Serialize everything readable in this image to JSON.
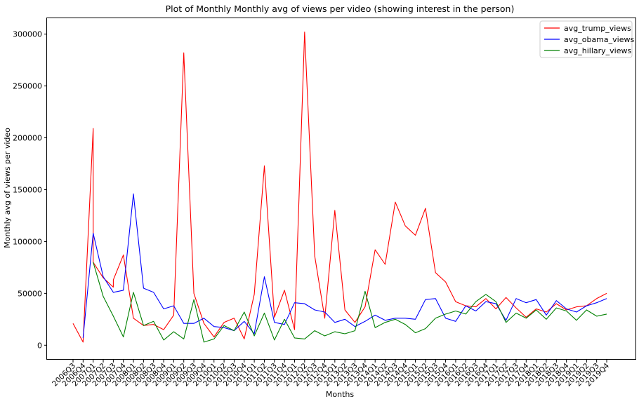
{
  "chart_data": {
    "type": "line",
    "title": "Plot of Monthly Monthly avg of views per video (showing interest in the person)",
    "xlabel": "Months",
    "ylabel": "Monthly avg of views per video",
    "ylim": [
      -14000,
      316000
    ],
    "yticks": [
      0,
      50000,
      100000,
      150000,
      200000,
      250000,
      300000
    ],
    "grid": false,
    "legend_position": "top-right",
    "categories": [
      "2006Q3",
      "2006Q4",
      "2007Q1",
      "2007Q2",
      "2007Q3",
      "2007Q4",
      "2008Q1",
      "2008Q2",
      "2008Q3",
      "2008Q4",
      "2009Q1",
      "2009Q2",
      "2009Q3",
      "2009Q4",
      "2010Q1",
      "2010Q2",
      "2010Q3",
      "2010Q4",
      "2011Q1",
      "2011Q2",
      "2011Q3",
      "2011Q4",
      "2012Q1",
      "2012Q2",
      "2012Q3",
      "2012Q4",
      "2013Q1",
      "2013Q2",
      "2013Q3",
      "2013Q4",
      "2014Q1",
      "2014Q2",
      "2014Q3",
      "2014Q4",
      "2015Q1",
      "2015Q2",
      "2015Q3",
      "2015Q4",
      "2016Q1",
      "2016Q2",
      "2016Q3",
      "2016Q4",
      "2017Q1",
      "2017Q2",
      "2017Q3",
      "2017Q4",
      "2018Q1",
      "2018Q2",
      "2018Q3",
      "2018Q4",
      "2019Q1",
      "2019Q2",
      "2019Q3",
      "2019Q4"
    ],
    "x": [
      "2006Q3",
      "2006Q4",
      "2007Q1",
      "2007Q1",
      "2007Q2",
      "2007Q2",
      "2007Q3",
      "2007Q3",
      "2007Q4",
      "2008Q1",
      "2008Q1",
      "2008Q2",
      "2008Q2",
      "2008Q3",
      "2008Q3",
      "2008Q4",
      "2009Q1",
      "2009Q1",
      "2009Q2",
      "2009Q2",
      "2009Q3",
      "2009Q4",
      "2009Q4",
      "2010Q1",
      "2010Q1",
      "2010Q2",
      "2010Q2",
      "2010Q3",
      "2010Q4",
      "2010Q4",
      "2011Q1",
      "2011Q1",
      "2011Q2",
      "2011Q2",
      "2011Q3",
      "2011Q3",
      "2011Q4",
      "2012Q1",
      "2012Q1",
      "2012Q2",
      "2012Q2",
      "2012Q3",
      "2012Q3",
      "2012Q4",
      "2013Q1",
      "2013Q1",
      "2013Q2",
      "2013Q2",
      "2013Q3",
      "2013Q4",
      "2013Q4",
      "2014Q1",
      "2014Q1",
      "2014Q2",
      "2014Q2",
      "2014Q3",
      "2014Q3",
      "2014Q4",
      "2015Q1",
      "2015Q1",
      "2015Q2",
      "2015Q2",
      "2015Q3",
      "2015Q4",
      "2015Q4",
      "2016Q1",
      "2016Q1",
      "2016Q2",
      "2016Q2",
      "2016Q3",
      "2016Q3",
      "2016Q4",
      "2017Q1",
      "2017Q1",
      "2017Q2",
      "2017Q2",
      "2017Q3",
      "2017Q3",
      "2017Q4",
      "2018Q1",
      "2018Q1",
      "2018Q2",
      "2018Q2",
      "2018Q3",
      "2018Q3",
      "2018Q4",
      "2019Q1",
      "2019Q1",
      "2019Q2",
      "2019Q2",
      "2019Q3",
      "2019Q3",
      "2019Q4"
    ],
    "series": [
      {
        "name": "avg_trump_views",
        "color": "#ff0000",
        "values": [
          21000,
          3000,
          209000,
          80000,
          65000,
          65000,
          56000,
          63000,
          87000,
          26000,
          26000,
          19000,
          19000,
          20000,
          20000,
          15000,
          29000,
          29000,
          282000,
          282000,
          50000,
          21000,
          21000,
          8000,
          8000,
          22000,
          22000,
          26000,
          6000,
          6000,
          49000,
          49000,
          173000,
          173000,
          27000,
          27000,
          53000,
          15000,
          15000,
          302000,
          302000,
          86000,
          86000,
          26000,
          130000,
          130000,
          34000,
          34000,
          22000,
          37000,
          37000,
          92000,
          92000,
          78000,
          78000,
          138000,
          138000,
          115000,
          106000,
          106000,
          132000,
          132000,
          70000,
          61000,
          61000,
          42000,
          42000,
          38000,
          38000,
          37000,
          37000,
          45000,
          35000,
          35000,
          46000,
          46000,
          36000,
          36000,
          27000,
          35000,
          35000,
          32000,
          32000,
          40000,
          40000,
          34000,
          37000,
          37000,
          38000,
          38000,
          45000,
          45000,
          50000
        ]
      },
      {
        "name": "avg_obama_views",
        "color": "#0000ff",
        "values": [
          null,
          7000,
          108000,
          108000,
          66000,
          66000,
          51000,
          51000,
          53000,
          146000,
          146000,
          55000,
          55000,
          51000,
          51000,
          35000,
          38000,
          38000,
          21000,
          21000,
          21000,
          26000,
          26000,
          18000,
          18000,
          17000,
          17000,
          14000,
          23000,
          23000,
          11000,
          11000,
          66000,
          66000,
          22000,
          22000,
          20000,
          41000,
          41000,
          40000,
          40000,
          34000,
          34000,
          32000,
          22000,
          22000,
          25000,
          25000,
          18000,
          23000,
          23000,
          29000,
          29000,
          24000,
          24000,
          26000,
          26000,
          26000,
          25000,
          25000,
          44000,
          44000,
          45000,
          26000,
          26000,
          23000,
          23000,
          38000,
          38000,
          33000,
          33000,
          42000,
          40000,
          40000,
          24000,
          24000,
          45000,
          45000,
          41000,
          44000,
          44000,
          29000,
          29000,
          43000,
          43000,
          35000,
          32000,
          32000,
          38000,
          38000,
          41000,
          41000,
          45000
        ]
      },
      {
        "name": "avg_hillary_views",
        "color": "#008000",
        "values": [
          null,
          null,
          80000,
          80000,
          47000,
          47000,
          28000,
          28000,
          8000,
          51000,
          51000,
          19000,
          19000,
          23000,
          23000,
          5000,
          13000,
          13000,
          6000,
          6000,
          44000,
          3000,
          3000,
          6000,
          6000,
          19000,
          19000,
          14000,
          32000,
          32000,
          9000,
          9000,
          31000,
          31000,
          5000,
          5000,
          25000,
          7000,
          7000,
          6000,
          6000,
          14000,
          14000,
          9000,
          13000,
          13000,
          11000,
          11000,
          14000,
          52000,
          52000,
          17000,
          17000,
          22000,
          22000,
          25000,
          25000,
          20000,
          12000,
          12000,
          16000,
          16000,
          26000,
          30000,
          30000,
          33000,
          33000,
          30000,
          30000,
          42000,
          42000,
          49000,
          42000,
          42000,
          22000,
          22000,
          31000,
          31000,
          26000,
          34000,
          34000,
          25000,
          25000,
          36000,
          36000,
          33000,
          24000,
          24000,
          34000,
          34000,
          28000,
          28000,
          30000
        ]
      }
    ]
  }
}
